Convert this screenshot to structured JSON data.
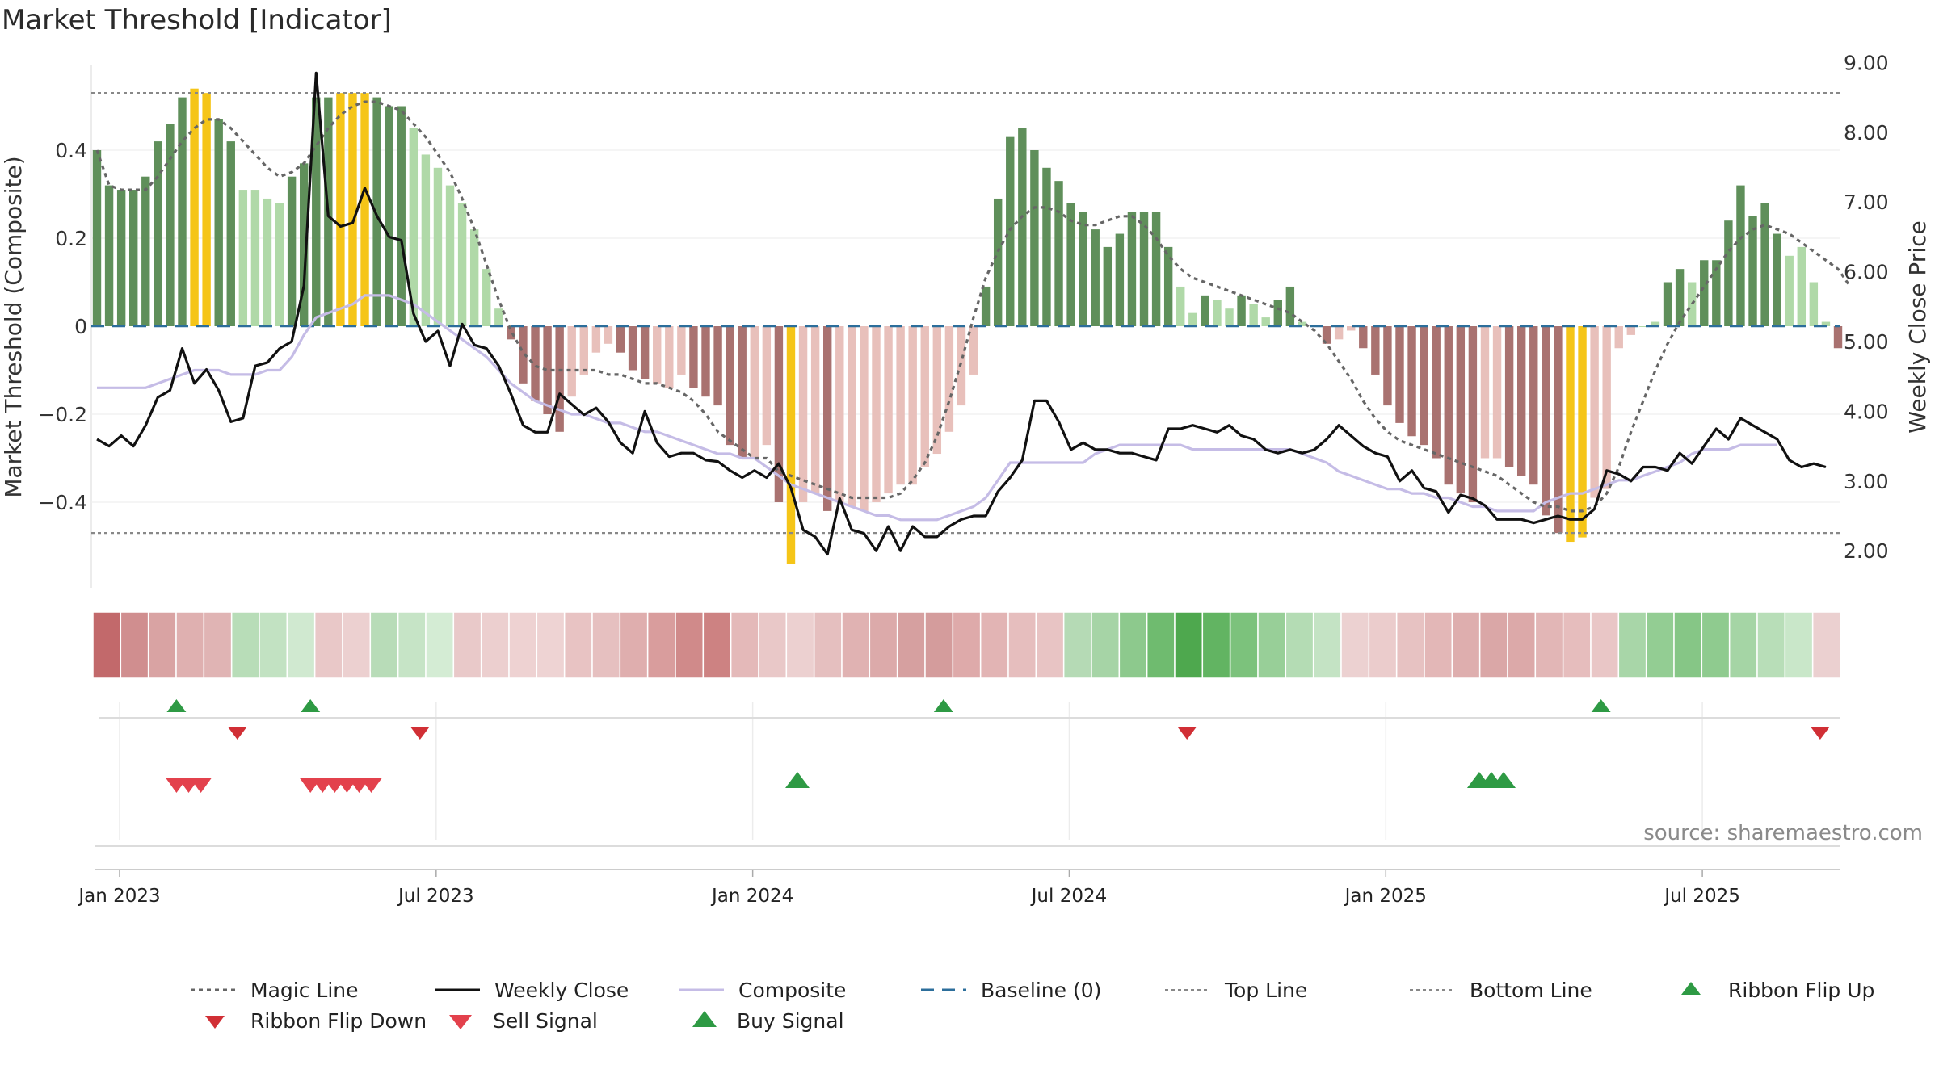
{
  "chart_data": {
    "type": "bar",
    "title": "Market Threshold [Indicator]",
    "ylabel": "Market Threshold (Composite)",
    "y2label": "Weekly Close Price",
    "source": "source: sharemaestro.com",
    "ylim": [
      -0.6,
      0.6
    ],
    "y2lim": [
      1.5,
      9.0
    ],
    "yticks": [
      -0.4,
      -0.2,
      0,
      0.2,
      0.4
    ],
    "ytick_labels": [
      "−0.4",
      "−0.2",
      "0",
      "0.2",
      "0.4"
    ],
    "y2ticks": [
      2,
      3,
      4,
      5,
      6,
      7,
      8,
      9
    ],
    "y2tick_labels": [
      "2.00",
      "3.00",
      "4.00",
      "5.00",
      "6.00",
      "7.00",
      "8.00",
      "9.00"
    ],
    "xticks": [
      {
        "label": "Jan 2023",
        "week": 0
      },
      {
        "label": "Jul 2023",
        "week": 26
      },
      {
        "label": "Jan 2024",
        "week": 52
      },
      {
        "label": "Jul 2024",
        "week": 78
      },
      {
        "label": "Jan 2025",
        "week": 104
      },
      {
        "label": "Jul 2025",
        "week": 130
      }
    ],
    "top_line": 0.53,
    "bottom_line": -0.47,
    "composite": [
      0.4,
      0.32,
      0.31,
      0.31,
      0.34,
      0.42,
      0.46,
      0.52,
      0.54,
      0.53,
      0.47,
      0.42,
      0.31,
      0.31,
      0.29,
      0.28,
      0.34,
      0.37,
      0.52,
      0.52,
      0.53,
      0.53,
      0.53,
      0.52,
      0.5,
      0.5,
      0.45,
      0.39,
      0.36,
      0.32,
      0.28,
      0.22,
      0.13,
      0.04,
      -0.03,
      -0.13,
      -0.17,
      -0.2,
      -0.24,
      -0.16,
      -0.11,
      -0.06,
      -0.04,
      -0.06,
      -0.1,
      -0.12,
      -0.13,
      -0.14,
      -0.11,
      -0.14,
      -0.16,
      -0.18,
      -0.27,
      -0.3,
      -0.3,
      -0.27,
      -0.4,
      -0.54,
      -0.4,
      -0.38,
      -0.42,
      -0.4,
      -0.41,
      -0.42,
      -0.4,
      -0.38,
      -0.36,
      -0.36,
      -0.32,
      -0.29,
      -0.24,
      -0.18,
      -0.11,
      0.09,
      0.29,
      0.43,
      0.45,
      0.4,
      0.36,
      0.33,
      0.28,
      0.26,
      0.22,
      0.18,
      0.21,
      0.26,
      0.26,
      0.26,
      0.18,
      0.09,
      0.03,
      0.07,
      0.06,
      0.04,
      0.07,
      0.05,
      0.02,
      0.06,
      0.09,
      0.01,
      0.0,
      -0.04,
      -0.03,
      -0.01,
      -0.05,
      -0.11,
      -0.18,
      -0.22,
      -0.25,
      -0.27,
      -0.3,
      -0.36,
      -0.38,
      -0.4,
      -0.3,
      -0.3,
      -0.32,
      -0.34,
      -0.36,
      -0.43,
      -0.47,
      -0.49,
      -0.48,
      -0.39,
      -0.37,
      -0.05,
      -0.02,
      0.0,
      0.01,
      0.1,
      0.13,
      0.1,
      0.15,
      0.15,
      0.24,
      0.32,
      0.25,
      0.28,
      0.21,
      0.16,
      0.18,
      0.1,
      0.01,
      -0.05
    ],
    "magic_line": [
      0.4,
      0.32,
      0.31,
      0.31,
      0.31,
      0.34,
      0.38,
      0.42,
      0.45,
      0.47,
      0.47,
      0.45,
      0.42,
      0.39,
      0.36,
      0.34,
      0.35,
      0.37,
      0.41,
      0.45,
      0.48,
      0.5,
      0.51,
      0.51,
      0.5,
      0.49,
      0.46,
      0.43,
      0.39,
      0.35,
      0.29,
      0.22,
      0.14,
      0.06,
      -0.01,
      -0.06,
      -0.09,
      -0.1,
      -0.1,
      -0.1,
      -0.1,
      -0.1,
      -0.11,
      -0.11,
      -0.12,
      -0.13,
      -0.13,
      -0.14,
      -0.15,
      -0.17,
      -0.2,
      -0.24,
      -0.26,
      -0.28,
      -0.3,
      -0.3,
      -0.33,
      -0.34,
      -0.35,
      -0.36,
      -0.37,
      -0.38,
      -0.39,
      -0.39,
      -0.39,
      -0.39,
      -0.38,
      -0.35,
      -0.31,
      -0.25,
      -0.17,
      -0.08,
      0.02,
      0.11,
      0.17,
      0.22,
      0.25,
      0.27,
      0.27,
      0.26,
      0.24,
      0.23,
      0.23,
      0.24,
      0.25,
      0.25,
      0.23,
      0.2,
      0.16,
      0.13,
      0.11,
      0.1,
      0.09,
      0.08,
      0.07,
      0.06,
      0.05,
      0.04,
      0.03,
      0.01,
      -0.01,
      -0.04,
      -0.08,
      -0.12,
      -0.17,
      -0.21,
      -0.24,
      -0.26,
      -0.27,
      -0.28,
      -0.29,
      -0.3,
      -0.31,
      -0.32,
      -0.33,
      -0.34,
      -0.36,
      -0.38,
      -0.4,
      -0.41,
      -0.41,
      -0.42,
      -0.42,
      -0.41,
      -0.38,
      -0.32,
      -0.24,
      -0.17,
      -0.1,
      -0.04,
      0.01,
      0.05,
      0.09,
      0.13,
      0.17,
      0.2,
      0.22,
      0.23,
      0.22,
      0.21,
      0.19,
      0.17,
      0.15,
      0.13,
      0.09
    ],
    "composite_line": [
      -0.14,
      -0.14,
      -0.14,
      -0.14,
      -0.14,
      -0.13,
      -0.12,
      -0.11,
      -0.1,
      -0.1,
      -0.1,
      -0.11,
      -0.11,
      -0.11,
      -0.1,
      -0.1,
      -0.07,
      -0.02,
      0.02,
      0.03,
      0.04,
      0.05,
      0.07,
      0.07,
      0.07,
      0.06,
      0.05,
      0.03,
      0.01,
      -0.01,
      -0.03,
      -0.05,
      -0.07,
      -0.1,
      -0.13,
      -0.15,
      -0.17,
      -0.18,
      -0.19,
      -0.2,
      -0.2,
      -0.21,
      -0.22,
      -0.22,
      -0.23,
      -0.24,
      -0.24,
      -0.25,
      -0.26,
      -0.27,
      -0.28,
      -0.29,
      -0.29,
      -0.3,
      -0.3,
      -0.32,
      -0.34,
      -0.36,
      -0.37,
      -0.38,
      -0.39,
      -0.4,
      -0.41,
      -0.42,
      -0.43,
      -0.43,
      -0.44,
      -0.44,
      -0.44,
      -0.44,
      -0.43,
      -0.42,
      -0.41,
      -0.39,
      -0.35,
      -0.31,
      -0.31,
      -0.31,
      -0.31,
      -0.31,
      -0.31,
      -0.31,
      -0.29,
      -0.28,
      -0.27,
      -0.27,
      -0.27,
      -0.27,
      -0.27,
      -0.27,
      -0.28,
      -0.28,
      -0.28,
      -0.28,
      -0.28,
      -0.28,
      -0.28,
      -0.28,
      -0.28,
      -0.29,
      -0.3,
      -0.31,
      -0.33,
      -0.34,
      -0.35,
      -0.36,
      -0.37,
      -0.37,
      -0.38,
      -0.38,
      -0.39,
      -0.39,
      -0.4,
      -0.41,
      -0.41,
      -0.42,
      -0.42,
      -0.42,
      -0.42,
      -0.4,
      -0.39,
      -0.38,
      -0.38,
      -0.37,
      -0.36,
      -0.35,
      -0.35,
      -0.34,
      -0.33,
      -0.32,
      -0.31,
      -0.29,
      -0.28,
      -0.28,
      -0.28,
      -0.27,
      -0.27,
      -0.27,
      -0.27
    ],
    "weekly_close": [
      3.6,
      3.5,
      3.65,
      3.5,
      3.8,
      4.2,
      4.3,
      4.9,
      4.4,
      4.6,
      4.3,
      3.85,
      3.9,
      4.65,
      4.7,
      4.9,
      5.0,
      5.8,
      8.85,
      6.8,
      6.65,
      6.7,
      7.2,
      6.8,
      6.5,
      6.45,
      5.4,
      5.0,
      5.15,
      4.65,
      5.25,
      4.95,
      4.9,
      4.65,
      4.25,
      3.8,
      3.7,
      3.7,
      4.25,
      4.1,
      3.95,
      4.05,
      3.85,
      3.55,
      3.4,
      4.0,
      3.55,
      3.35,
      3.4,
      3.4,
      3.3,
      3.28,
      3.15,
      3.05,
      3.15,
      3.05,
      3.25,
      2.9,
      2.3,
      2.2,
      1.95,
      2.75,
      2.3,
      2.25,
      2.0,
      2.35,
      2.0,
      2.35,
      2.2,
      2.2,
      2.35,
      2.45,
      2.5,
      2.5,
      2.85,
      3.05,
      3.3,
      4.15,
      4.15,
      3.85,
      3.45,
      3.55,
      3.45,
      3.45,
      3.4,
      3.4,
      3.35,
      3.3,
      3.75,
      3.75,
      3.8,
      3.75,
      3.7,
      3.8,
      3.65,
      3.6,
      3.45,
      3.4,
      3.45,
      3.4,
      3.45,
      3.6,
      3.8,
      3.65,
      3.5,
      3.4,
      3.35,
      3.0,
      3.15,
      2.9,
      2.85,
      2.55,
      2.8,
      2.75,
      2.65,
      2.45,
      2.45,
      2.45,
      2.4,
      2.45,
      2.5,
      2.45,
      2.45,
      2.6,
      3.15,
      3.1,
      3.0,
      3.2,
      3.2,
      3.15,
      3.4,
      3.25,
      3.5,
      3.75,
      3.6,
      3.9,
      3.8,
      3.7,
      3.6,
      3.3,
      3.2,
      3.25,
      3.2
    ]
  },
  "ribbon_colors": [
    "#c2696b",
    "#d08e8f",
    "#d9a3a3",
    "#dfb0b0",
    "#e0b4b4",
    "#b8ddb8",
    "#c2e2c2",
    "#d0e9d0",
    "#e9c8c8",
    "#ecd0d0",
    "#b8dcb8",
    "#c6e4c6",
    "#d4ecd4",
    "#e9c9c9",
    "#eccfcf",
    "#eed2d2",
    "#eed3d3",
    "#e8c3c3",
    "#e6c0c0",
    "#dfaeae",
    "#d99d9d",
    "#d08a8a",
    "#cd8282",
    "#e4b9b9",
    "#e9c8c8",
    "#ecd0d0",
    "#e5bfbf",
    "#e0b2b2",
    "#dcaaaa",
    "#d6a0a0",
    "#d49c9c",
    "#deaaaa",
    "#e2b4b4",
    "#e6bebe",
    "#e8c4c4",
    "#b5dab5",
    "#a6d4a6",
    "#8dc98d",
    "#6fbb6f",
    "#4ea84e",
    "#62b462",
    "#7cc27c",
    "#98cf98",
    "#b4dcb4",
    "#c4e3c4",
    "#ecd1d1",
    "#ebcccc",
    "#e7c2c2",
    "#e3b7b7",
    "#deaeae",
    "#daa7a7",
    "#dca9a9",
    "#e2b6b6",
    "#e6bdbd",
    "#e9c6c6",
    "#a8d6a8",
    "#93cd93",
    "#86c686",
    "#8fcb8f",
    "#a5d5a5",
    "#b8deb8",
    "#c9e7c9",
    "#ebd0d0"
  ],
  "legend": [
    {
      "label": "Magic Line",
      "key": "magic"
    },
    {
      "label": "Weekly Close",
      "key": "close"
    },
    {
      "label": "Composite",
      "key": "composite"
    },
    {
      "label": "Baseline (0)",
      "key": "baseline"
    },
    {
      "label": "Top Line",
      "key": "top"
    },
    {
      "label": "Bottom Line",
      "key": "bottom"
    },
    {
      "label": "Ribbon Flip Up",
      "key": "flipup"
    },
    {
      "label": "Ribbon Flip Down",
      "key": "flipdown"
    },
    {
      "label": "Sell Signal",
      "key": "sell"
    },
    {
      "label": "Buy Signal",
      "key": "buy"
    }
  ],
  "signals": {
    "ribbon_flip_up_weeks": [
      6,
      17,
      69,
      123
    ],
    "ribbon_flip_down_weeks": [
      11,
      26,
      89,
      141
    ],
    "sell_signal_weeks": [
      6,
      7,
      8,
      17,
      18,
      19,
      20,
      21,
      22
    ],
    "buy_signal_weeks": [
      57,
      113,
      114,
      115
    ]
  },
  "colors": {
    "bull_light": "#b0d9a8",
    "bull_dark": "#5f8f5a",
    "bear_light": "#e8c0bb",
    "bear_dark": "#a97270",
    "extreme": "#f5c518",
    "magic": "#666666",
    "close": "#111111",
    "composite": "#c5bce6",
    "baseline": "#2c6e9b",
    "flip_up": "#2e9a44",
    "flip_down": "#d12f35",
    "sell": "#e3414c",
    "buy": "#2e9a44"
  }
}
